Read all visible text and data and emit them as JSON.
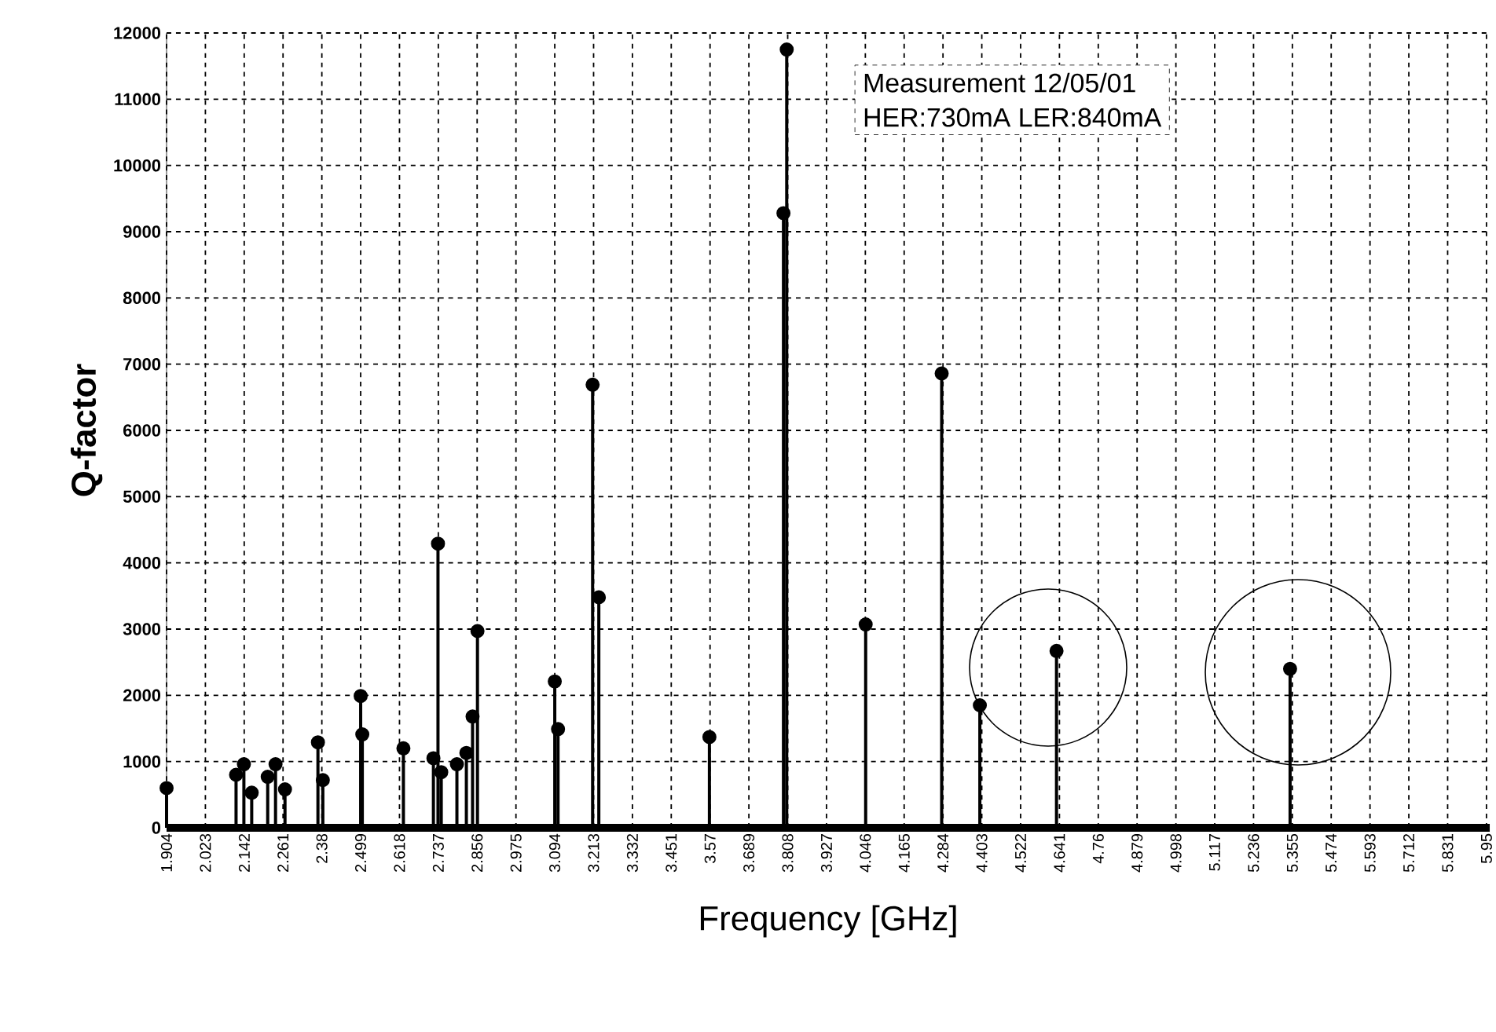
{
  "chart_data": {
    "type": "lollipop",
    "xlabel": "Frequency [GHz]",
    "ylabel": "Q-factor",
    "annotations": [
      "Measurement 12/05/01",
      "HER:730mA LER:840mA"
    ],
    "x": [
      1.904,
      2.117,
      2.141,
      2.165,
      2.214,
      2.238,
      2.267,
      2.368,
      2.383,
      2.499,
      2.504,
      2.63,
      2.722,
      2.736,
      2.746,
      2.794,
      2.823,
      2.842,
      2.857,
      3.094,
      3.104,
      3.21,
      3.229,
      3.568,
      3.805,
      3.795,
      4.047,
      4.28,
      4.397,
      4.632,
      5.348
    ],
    "values": [
      600,
      800,
      960,
      530,
      770,
      960,
      580,
      1290,
      720,
      1990,
      1410,
      1200,
      1050,
      4290,
      840,
      960,
      1130,
      1680,
      2970,
      2210,
      1490,
      6690,
      3480,
      1370,
      11750,
      9280,
      3070,
      6860,
      1850,
      2670,
      2400
    ],
    "color": "#000000",
    "marker": "circle",
    "grid": true,
    "xlim": [
      1.904,
      5.96
    ],
    "ylim": [
      0,
      12000
    ],
    "xticks": [
      1.904,
      2.023,
      2.142,
      2.261,
      2.38,
      2.499,
      2.618,
      2.737,
      2.856,
      2.975,
      3.094,
      3.213,
      3.332,
      3.451,
      3.57,
      3.689,
      3.808,
      3.927,
      4.046,
      4.165,
      4.284,
      4.403,
      4.522,
      4.641,
      4.76,
      4.879,
      4.998,
      5.117,
      5.236,
      5.355,
      5.474,
      5.593,
      5.712,
      5.831,
      5.95
    ],
    "yticks": [
      0,
      1000,
      2000,
      3000,
      4000,
      5000,
      6000,
      7000,
      8000,
      9000,
      10000,
      11000,
      12000
    ]
  }
}
